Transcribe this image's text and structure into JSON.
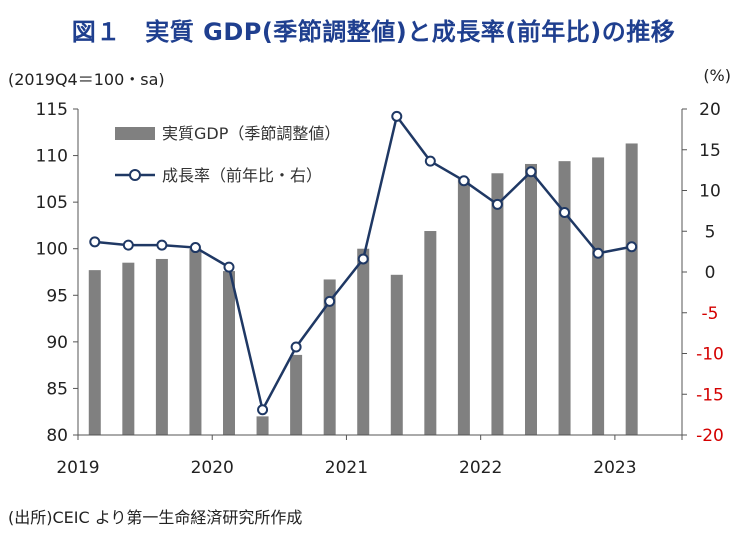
{
  "title": "図１　実質 GDP(季節調整値)と成長率(前年比)の推移",
  "left_axis_label": "(2019Q4＝100・sa)",
  "right_axis_label": "(%)",
  "source_note": "(出所)CEIC より第一生命経済研究所作成",
  "colors": {
    "bar": "#808080",
    "line": "#1f3864",
    "negative_tick": "#d40000",
    "title": "#1f3f8f"
  },
  "chart_data": {
    "type": "bar+line",
    "title": "図１　実質 GDP(季節調整値)と成長率(前年比)の推移",
    "x": [
      "2019Q1",
      "2019Q2",
      "2019Q3",
      "2019Q4",
      "2020Q1",
      "2020Q2",
      "2020Q3",
      "2020Q4",
      "2021Q1",
      "2021Q2",
      "2021Q3",
      "2021Q4",
      "2022Q1",
      "2022Q2",
      "2022Q3",
      "2022Q4",
      "2023Q1",
      "2023Q2"
    ],
    "x_tick_labels": [
      {
        "label": "2019",
        "index": 0
      },
      {
        "label": "2020",
        "index": 4
      },
      {
        "label": "2021",
        "index": 8
      },
      {
        "label": "2022",
        "index": 12
      },
      {
        "label": "2023",
        "index": 16
      }
    ],
    "series": [
      {
        "name": "実質GDP（季節調整値）",
        "type": "bar",
        "axis": "left",
        "values": [
          97.7,
          98.5,
          98.9,
          100.0,
          97.6,
          82.0,
          88.6,
          96.7,
          100.0,
          97.2,
          101.9,
          107.5,
          108.1,
          109.1,
          109.4,
          109.8,
          111.3,
          null
        ]
      },
      {
        "name": "成長率（前年比・右）",
        "type": "line",
        "axis": "right",
        "values": [
          3.7,
          3.3,
          3.3,
          3.0,
          0.6,
          -16.9,
          -9.2,
          -3.6,
          1.6,
          19.1,
          13.6,
          11.2,
          8.3,
          12.3,
          7.3,
          2.3,
          3.1,
          null
        ]
      }
    ],
    "left_axis": {
      "min": 80,
      "max": 115,
      "ticks": [
        80,
        85,
        90,
        95,
        100,
        105,
        110,
        115
      ]
    },
    "right_axis": {
      "min": -20,
      "max": 20,
      "ticks": [
        -20,
        -15,
        -10,
        -5,
        0,
        5,
        10,
        15,
        20
      ]
    },
    "legend": {
      "position": "top-left",
      "entries": [
        "実質GDP（季節調整値）",
        "成長率（前年比・右）"
      ]
    },
    "grid": false
  }
}
